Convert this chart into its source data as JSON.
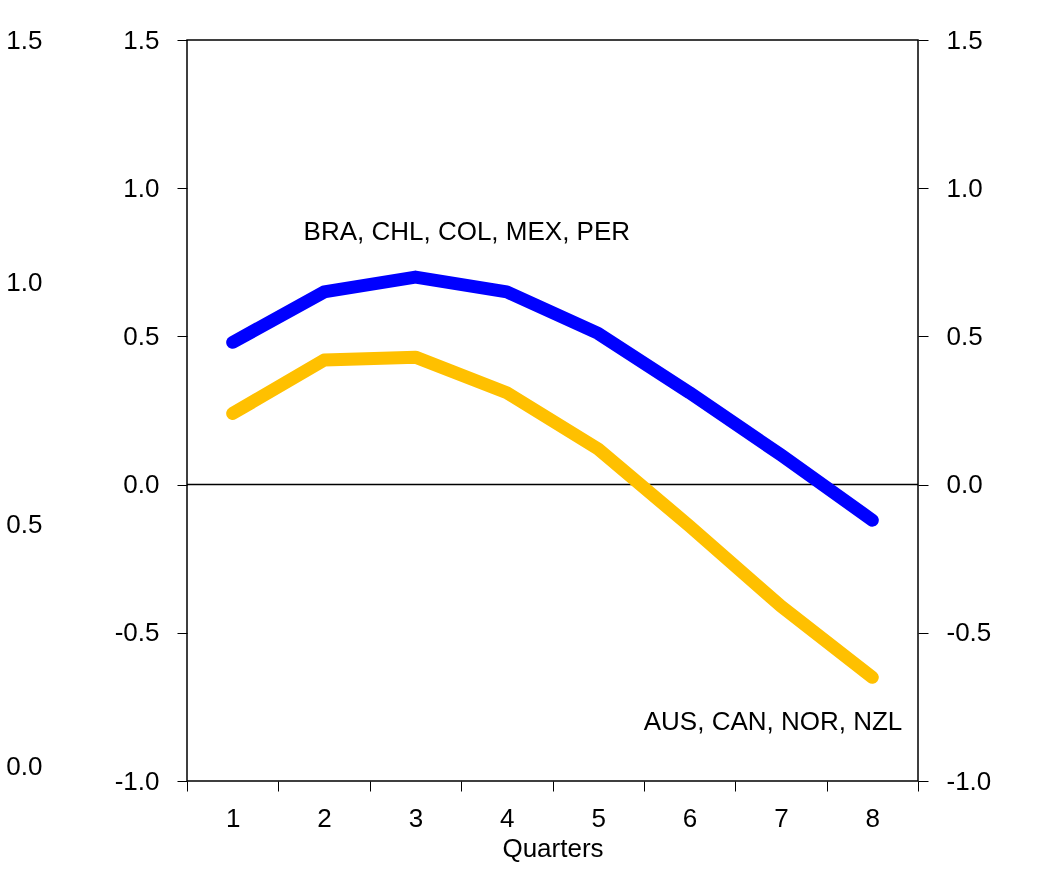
{
  "chart_data": {
    "type": "line",
    "xlabel": "Quarters",
    "categories": [
      "1",
      "2",
      "3",
      "4",
      "5",
      "6",
      "7",
      "8"
    ],
    "series": [
      {
        "name": "BRA, CHL, COL, MEX, PER",
        "color": "#0000ff",
        "values": [
          0.48,
          0.65,
          0.7,
          0.65,
          0.51,
          0.31,
          0.1,
          -0.12
        ]
      },
      {
        "name": "AUS, CAN, NOR, NZL",
        "color": "#ffc000",
        "values": [
          0.24,
          0.42,
          0.43,
          0.31,
          0.12,
          -0.14,
          -0.41,
          -0.65
        ]
      }
    ],
    "ylim": [
      -1.0,
      1.5
    ],
    "yticks": [
      {
        "value": -1.0,
        "label": "-1.0"
      },
      {
        "value": -0.5,
        "label": "-0.5"
      },
      {
        "value": 0,
        "label": "0.0"
      },
      {
        "value": 0.5,
        "label": "0.5"
      },
      {
        "value": 1.0,
        "label": "1.0"
      },
      {
        "value": 1.5,
        "label": "1.5"
      }
    ],
    "y2lim": [
      -1.0,
      1.5
    ],
    "y2ticks": [
      {
        "value": -1.0,
        "label": "-1.0"
      },
      {
        "value": -0.5,
        "label": "-0.5"
      },
      {
        "value": 0,
        "label": "0.0"
      },
      {
        "value": 0.5,
        "label": "0.5"
      },
      {
        "value": 1.0,
        "label": "1.0"
      },
      {
        "value": 1.5,
        "label": "1.5"
      }
    ],
    "y3lim": [
      -0.03,
      1.5
    ],
    "y3ticks": [
      {
        "value": 0,
        "label": "0.0"
      },
      {
        "value": 0.5,
        "label": "0.5"
      },
      {
        "value": 1.0,
        "label": "1.0"
      },
      {
        "value": 1.5,
        "label": "1.5"
      }
    ],
    "ref_lines": [
      {
        "axis": "y",
        "value": 0,
        "color": "#000000"
      }
    ],
    "grid": false,
    "legend": false,
    "marker": "none",
    "line_style": "solid"
  }
}
